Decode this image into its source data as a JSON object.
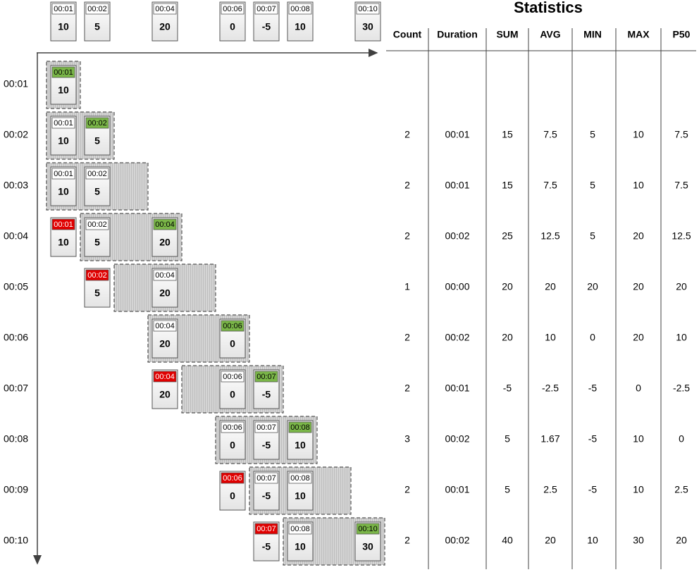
{
  "timeline": [
    {
      "time": "00:01",
      "value": 10
    },
    {
      "time": "00:02",
      "value": 5
    },
    {
      "time": "00:04",
      "value": 20
    },
    {
      "time": "00:06",
      "value": 0
    },
    {
      "time": "00:07",
      "value": -5
    },
    {
      "time": "00:08",
      "value": 10
    },
    {
      "time": "00:10",
      "value": 30
    }
  ],
  "rows": [
    {
      "time": "00:01",
      "items": [
        {
          "time": "00:01",
          "value": 10,
          "state": "new"
        }
      ]
    },
    {
      "time": "00:02",
      "items": [
        {
          "time": "00:01",
          "value": 10,
          "state": "kept"
        },
        {
          "time": "00:02",
          "value": 5,
          "state": "new"
        }
      ],
      "stats": [
        2,
        "00:01",
        15,
        7.5,
        5,
        10,
        7.5
      ]
    },
    {
      "time": "00:03",
      "items": [
        {
          "time": "00:01",
          "value": 10,
          "state": "kept"
        },
        {
          "time": "00:02",
          "value": 5,
          "state": "kept"
        }
      ],
      "stats": [
        2,
        "00:01",
        15,
        7.5,
        5,
        10,
        7.5
      ]
    },
    {
      "time": "00:04",
      "items": [
        {
          "time": "00:01",
          "value": 10,
          "state": "expired"
        },
        {
          "time": "00:02",
          "value": 5,
          "state": "kept"
        },
        {
          "time": "00:04",
          "value": 20,
          "state": "new"
        }
      ],
      "stats": [
        2,
        "00:02",
        25,
        12.5,
        5,
        20,
        12.5
      ]
    },
    {
      "time": "00:05",
      "items": [
        {
          "time": "00:02",
          "value": 5,
          "state": "expired"
        },
        {
          "time": "00:04",
          "value": 20,
          "state": "kept"
        }
      ],
      "stats": [
        1,
        "00:00",
        20,
        20,
        20,
        20,
        20
      ]
    },
    {
      "time": "00:06",
      "items": [
        {
          "time": "00:04",
          "value": 20,
          "state": "kept"
        },
        {
          "time": "00:06",
          "value": 0,
          "state": "new"
        }
      ],
      "stats": [
        2,
        "00:02",
        20,
        10,
        0,
        20,
        10
      ]
    },
    {
      "time": "00:07",
      "items": [
        {
          "time": "00:04",
          "value": 20,
          "state": "expired"
        },
        {
          "time": "00:06",
          "value": 0,
          "state": "kept"
        },
        {
          "time": "00:07",
          "value": -5,
          "state": "new"
        }
      ],
      "stats": [
        2,
        "00:01",
        -5,
        -2.5,
        -5,
        0,
        -2.5
      ]
    },
    {
      "time": "00:08",
      "items": [
        {
          "time": "00:06",
          "value": 0,
          "state": "kept"
        },
        {
          "time": "00:07",
          "value": -5,
          "state": "kept"
        },
        {
          "time": "00:08",
          "value": 10,
          "state": "new"
        }
      ],
      "stats": [
        3,
        "00:02",
        5,
        1.67,
        -5,
        10,
        0
      ]
    },
    {
      "time": "00:09",
      "items": [
        {
          "time": "00:06",
          "value": 0,
          "state": "expired"
        },
        {
          "time": "00:07",
          "value": -5,
          "state": "kept"
        },
        {
          "time": "00:08",
          "value": 10,
          "state": "kept"
        }
      ],
      "stats": [
        2,
        "00:01",
        5,
        2.5,
        -5,
        10,
        2.5
      ]
    },
    {
      "time": "00:10",
      "items": [
        {
          "time": "00:07",
          "value": -5,
          "state": "expired"
        },
        {
          "time": "00:08",
          "value": 10,
          "state": "kept"
        },
        {
          "time": "00:10",
          "value": 30,
          "state": "new"
        }
      ],
      "stats": [
        2,
        "00:02",
        40,
        20,
        10,
        30,
        20
      ]
    }
  ],
  "statistics": {
    "title": "Statistics",
    "headers": [
      "Count",
      "Duration",
      "SUM",
      "AVG",
      "MIN",
      "MAX",
      "P50"
    ]
  }
}
